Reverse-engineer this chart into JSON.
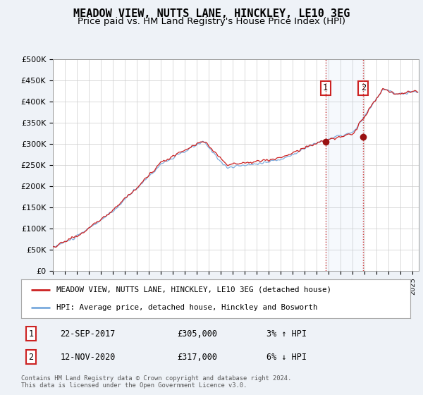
{
  "title": "MEADOW VIEW, NUTTS LANE, HINCKLEY, LE10 3EG",
  "subtitle": "Price paid vs. HM Land Registry's House Price Index (HPI)",
  "ylabel_ticks": [
    "£0",
    "£50K",
    "£100K",
    "£150K",
    "£200K",
    "£250K",
    "£300K",
    "£350K",
    "£400K",
    "£450K",
    "£500K"
  ],
  "ytick_values": [
    0,
    50000,
    100000,
    150000,
    200000,
    250000,
    300000,
    350000,
    400000,
    450000,
    500000
  ],
  "ylim": [
    0,
    500000
  ],
  "xlim_start": 1995.0,
  "xlim_end": 2025.5,
  "hpi_line_color": "#7aaadd",
  "price_line_color": "#cc2222",
  "sale1_x": 2017.72,
  "sale1_y": 305000,
  "sale2_x": 2020.87,
  "sale2_y": 317000,
  "vline_color": "#cc3333",
  "background_color": "#eef2f7",
  "plot_bg_color": "#ffffff",
  "legend_label_red": "MEADOW VIEW, NUTTS LANE, HINCKLEY, LE10 3EG (detached house)",
  "legend_label_blue": "HPI: Average price, detached house, Hinckley and Bosworth",
  "sale1_date": "22-SEP-2017",
  "sale1_price": "£305,000",
  "sale1_hpi": "3% ↑ HPI",
  "sale2_date": "12-NOV-2020",
  "sale2_price": "£317,000",
  "sale2_hpi": "6% ↓ HPI",
  "footer": "Contains HM Land Registry data © Crown copyright and database right 2024.\nThis data is licensed under the Open Government Licence v3.0.",
  "grid_color": "#cccccc",
  "title_fontsize": 11,
  "subtitle_fontsize": 9.5
}
